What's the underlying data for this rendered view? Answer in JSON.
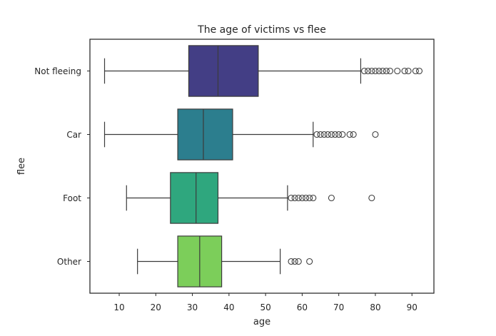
{
  "chart_data": {
    "type": "boxplot",
    "title": "The age of victims vs flee",
    "xlabel": "age",
    "ylabel": "flee",
    "xlim": [
      2,
      96
    ],
    "xticks": [
      10,
      20,
      30,
      40,
      50,
      60,
      70,
      80,
      90
    ],
    "grid": false,
    "orientation": "horizontal",
    "categories": [
      "Not fleeing",
      "Car",
      "Foot",
      "Other"
    ],
    "colors": [
      "#433e85",
      "#2c7e8e",
      "#2fa77e",
      "#7cce5a"
    ],
    "boxes": [
      {
        "category": "Not fleeing",
        "whisker_low": 6,
        "q1": 29,
        "median": 37,
        "q3": 48,
        "whisker_high": 76,
        "outliers": [
          77,
          78,
          79,
          80,
          81,
          82,
          83,
          84,
          86,
          88,
          89,
          91,
          92
        ]
      },
      {
        "category": "Car",
        "whisker_low": 6,
        "q1": 26,
        "median": 33,
        "q3": 41,
        "whisker_high": 63,
        "outliers": [
          64,
          65,
          66,
          67,
          68,
          69,
          70,
          71,
          73,
          74,
          80
        ]
      },
      {
        "category": "Foot",
        "whisker_low": 12,
        "q1": 24,
        "median": 31,
        "q3": 37,
        "whisker_high": 56,
        "outliers": [
          57,
          58,
          59,
          60,
          61,
          62,
          63,
          68,
          79
        ]
      },
      {
        "category": "Other",
        "whisker_low": 15,
        "q1": 26,
        "median": 32,
        "q3": 38,
        "whisker_high": 54,
        "outliers": [
          57,
          58,
          59,
          62
        ]
      }
    ]
  }
}
